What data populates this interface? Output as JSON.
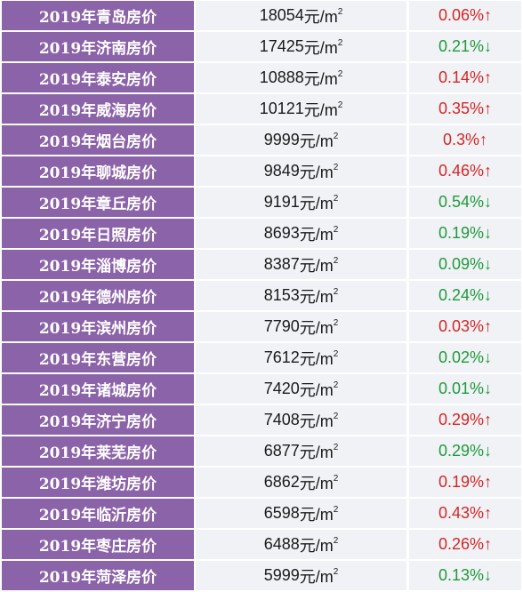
{
  "colors": {
    "name_bg": "#8b63a8",
    "value_bg": "#f0f2f5",
    "up": "#d42626",
    "down": "#1f9a3c"
  },
  "unit": "元/m",
  "unit_sup": "2",
  "rows": [
    {
      "name": "2019年青岛房价",
      "price": "18054",
      "change": "0.06%",
      "arrow": "↑",
      "dir": "up"
    },
    {
      "name": "2019年济南房价",
      "price": "17425",
      "change": "0.21%",
      "arrow": "↓",
      "dir": "down"
    },
    {
      "name": "2019年泰安房价",
      "price": "10888",
      "change": "0.14%",
      "arrow": "↑",
      "dir": "up"
    },
    {
      "name": "2019年威海房价",
      "price": "10121",
      "change": "0.35%",
      "arrow": "↑",
      "dir": "up"
    },
    {
      "name": "2019年烟台房价",
      "price": "9999",
      "change": "0.3%",
      "arrow": "↑",
      "dir": "up"
    },
    {
      "name": "2019年聊城房价",
      "price": "9849",
      "change": "0.46%",
      "arrow": "↑",
      "dir": "up"
    },
    {
      "name": "2019年章丘房价",
      "price": "9191",
      "change": "0.54%",
      "arrow": "↓",
      "dir": "down"
    },
    {
      "name": "2019年日照房价",
      "price": "8693",
      "change": "0.19%",
      "arrow": "↓",
      "dir": "down"
    },
    {
      "name": "2019年淄博房价",
      "price": "8387",
      "change": "0.09%",
      "arrow": "↓",
      "dir": "down"
    },
    {
      "name": "2019年德州房价",
      "price": "8153",
      "change": "0.24%",
      "arrow": "↓",
      "dir": "down"
    },
    {
      "name": "2019年滨州房价",
      "price": "7790",
      "change": "0.03%",
      "arrow": "↑",
      "dir": "up"
    },
    {
      "name": "2019年东营房价",
      "price": "7612",
      "change": "0.02%",
      "arrow": "↓",
      "dir": "down"
    },
    {
      "name": "2019年诸城房价",
      "price": "7420",
      "change": "0.01%",
      "arrow": "↓",
      "dir": "down"
    },
    {
      "name": "2019年济宁房价",
      "price": "7408",
      "change": "0.29%",
      "arrow": "↑",
      "dir": "up"
    },
    {
      "name": "2019年莱芜房价",
      "price": "6877",
      "change": "0.29%",
      "arrow": "↓",
      "dir": "down"
    },
    {
      "name": "2019年潍坊房价",
      "price": "6862",
      "change": "0.19%",
      "arrow": "↑",
      "dir": "up"
    },
    {
      "name": "2019年临沂房价",
      "price": "6598",
      "change": "0.43%",
      "arrow": "↑",
      "dir": "up"
    },
    {
      "name": "2019年枣庄房价",
      "price": "6488",
      "change": "0.26%",
      "arrow": "↑",
      "dir": "up"
    },
    {
      "name": "2019年菏泽房价",
      "price": "5999",
      "change": "0.13%",
      "arrow": "↓",
      "dir": "down"
    }
  ]
}
